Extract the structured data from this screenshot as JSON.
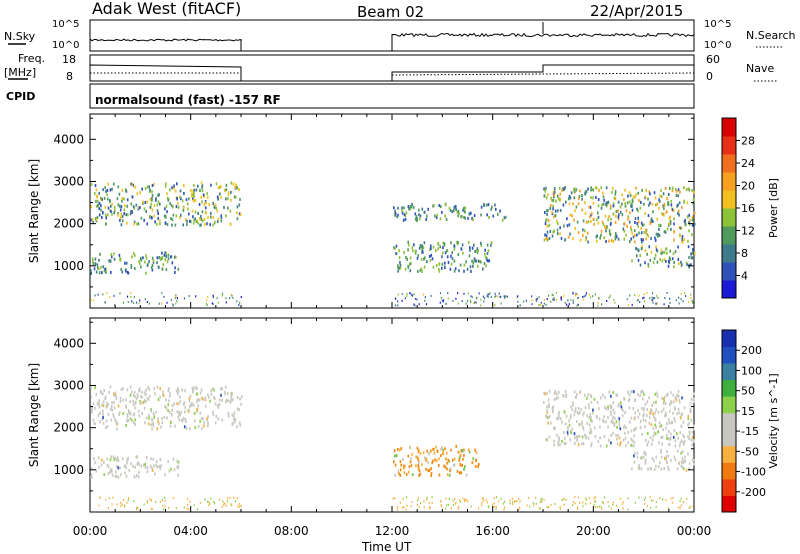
{
  "header": {
    "title": "Adak West (fitACF)",
    "beam": "Beam 02",
    "date": "22/Apr/2015"
  },
  "strips": {
    "nsky_label": "N.Sky",
    "nsky_ticks": [
      "10^5",
      "10^0"
    ],
    "nsearch_label": "N.Search",
    "nsearch_ticks": [
      "10^5",
      "10^0"
    ],
    "freq_label_1": "Freq.",
    "freq_label_2": "[MHz]",
    "freq_ticks": [
      "18",
      "8"
    ],
    "nave_label": "Nave",
    "nave_ticks": [
      "60",
      "0"
    ],
    "cpid_label": "CPID",
    "cpid_text": "normalsound (fast) -157 RF"
  },
  "chart_data": [
    {
      "type": "heatmap",
      "panel": "power",
      "ylabel": "Slant Range [km]",
      "yticks": [
        "1000",
        "2000",
        "3000",
        "4000"
      ],
      "ylim": [
        0,
        4600
      ],
      "xlim": [
        0,
        24
      ],
      "colorbar_label": "Power [dB]",
      "colorbar_ticks": [
        "4",
        "8",
        "12",
        "16",
        "20",
        "24",
        "28"
      ],
      "colors": [
        "#1a1ad6",
        "#2e52b8",
        "#3f7a8a",
        "#4f9a5c",
        "#8cc23a",
        "#f0c020",
        "#f5a020",
        "#f07020",
        "#e83018",
        "#d80000"
      ],
      "echo_regions": [
        {
          "t": [
            0.0,
            3.5
          ],
          "r": [
            850,
            1350
          ],
          "level": [
            1,
            4
          ]
        },
        {
          "t": [
            0.0,
            6.0
          ],
          "r": [
            2000,
            3000
          ],
          "level": [
            1,
            5
          ]
        },
        {
          "t": [
            12.0,
            16.0
          ],
          "r": [
            900,
            1600
          ],
          "level": [
            1,
            4
          ]
        },
        {
          "t": [
            12.0,
            16.5
          ],
          "r": [
            2100,
            2500
          ],
          "level": [
            1,
            4
          ]
        },
        {
          "t": [
            18.0,
            24.0
          ],
          "r": [
            1600,
            2900
          ],
          "level": [
            1,
            6
          ]
        },
        {
          "t": [
            21.5,
            24.0
          ],
          "r": [
            1000,
            1500
          ],
          "level": [
            1,
            5
          ]
        }
      ]
    },
    {
      "type": "heatmap",
      "panel": "velocity",
      "ylabel": "Slant Range [km]",
      "yticks": [
        "1000",
        "2000",
        "3000",
        "4000"
      ],
      "ylim": [
        0,
        4600
      ],
      "xlim": [
        0,
        24
      ],
      "xticks": [
        "00:00",
        "04:00",
        "08:00",
        "12:00",
        "16:00",
        "20:00",
        "00:00"
      ],
      "xlabel": "Time UT",
      "colorbar_label": "Velocity [m s^-1]",
      "colorbar_ticks": [
        "-200",
        "-100",
        "-50",
        "-15",
        "15",
        "50",
        "100",
        "200"
      ],
      "colors": [
        "#e00000",
        "#f04010",
        "#f07a10",
        "#f8b040",
        "#c8c8c0",
        "#c8c8c0",
        "#8ed04a",
        "#3fb040",
        "#3a80a0",
        "#2050c0",
        "#1830b0"
      ],
      "echo_regions": [
        {
          "t": [
            0.0,
            3.5
          ],
          "r": [
            850,
            1350
          ],
          "level": "neutral"
        },
        {
          "t": [
            0.0,
            6.0
          ],
          "r": [
            2000,
            3000
          ],
          "level": "neutral"
        },
        {
          "t": [
            12.0,
            15.5
          ],
          "r": [
            900,
            1600
          ],
          "level": "negative"
        },
        {
          "t": [
            18.0,
            24.0
          ],
          "r": [
            1600,
            2900
          ],
          "level": "neutral"
        },
        {
          "t": [
            21.5,
            24.0
          ],
          "r": [
            1000,
            1500
          ],
          "level": "neutral"
        }
      ]
    }
  ]
}
